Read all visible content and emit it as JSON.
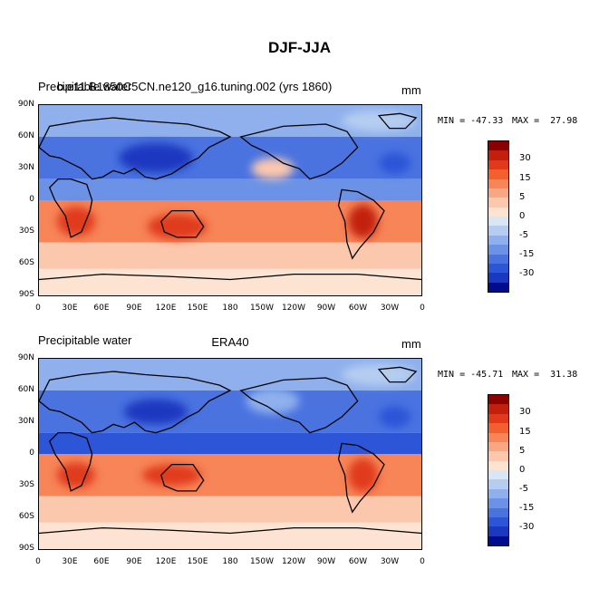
{
  "title": "DJF-JJA",
  "panels": [
    {
      "left_label": "Precipitable water",
      "center_label": "b.e11.B1850C5CN.ne120_g16.tuning.002 (yrs 1860)",
      "units": "mm",
      "min_label": "MIN = -47.33",
      "max_label": "MAX =  27.98"
    },
    {
      "left_label": "Precipitable water",
      "center_label": "ERA40",
      "units": "mm",
      "min_label": "MIN = -45.71",
      "max_label": "MAX =  31.38"
    }
  ],
  "lat_ticks": [
    "90N",
    "60N",
    "30N",
    "0",
    "30S",
    "60S",
    "90S"
  ],
  "lon_ticks": [
    "0",
    "30E",
    "60E",
    "90E",
    "120E",
    "150E",
    "180",
    "150W",
    "120W",
    "90W",
    "60W",
    "30W",
    "0"
  ],
  "colorbar": {
    "labels": [
      "30",
      "15",
      "5",
      "0",
      "-5",
      "-15",
      "-30"
    ],
    "colors": [
      "#8b0000",
      "#c2200c",
      "#e03a1a",
      "#f2602e",
      "#f78558",
      "#f9a783",
      "#fbc8ad",
      "#fde3d2",
      "#d8e6f6",
      "#b5cdf0",
      "#8fb0ec",
      "#6b92e6",
      "#4a73e0",
      "#2c55d8",
      "#1a38c0",
      "#000c8f"
    ]
  },
  "chart_data": {
    "type": "heatmap",
    "variable": "Precipitable water",
    "units": "mm",
    "lat_range": [
      "90S",
      "90N"
    ],
    "lon_range": [
      "0",
      "0"
    ],
    "panels": [
      {
        "label": "b.e11.B1850C5CN.ne120_g16.tuning.002 (yrs 1860)",
        "min": -47.33,
        "max": 27.98
      },
      {
        "label": "ERA40",
        "min": -45.71,
        "max": 31.38
      }
    ]
  }
}
